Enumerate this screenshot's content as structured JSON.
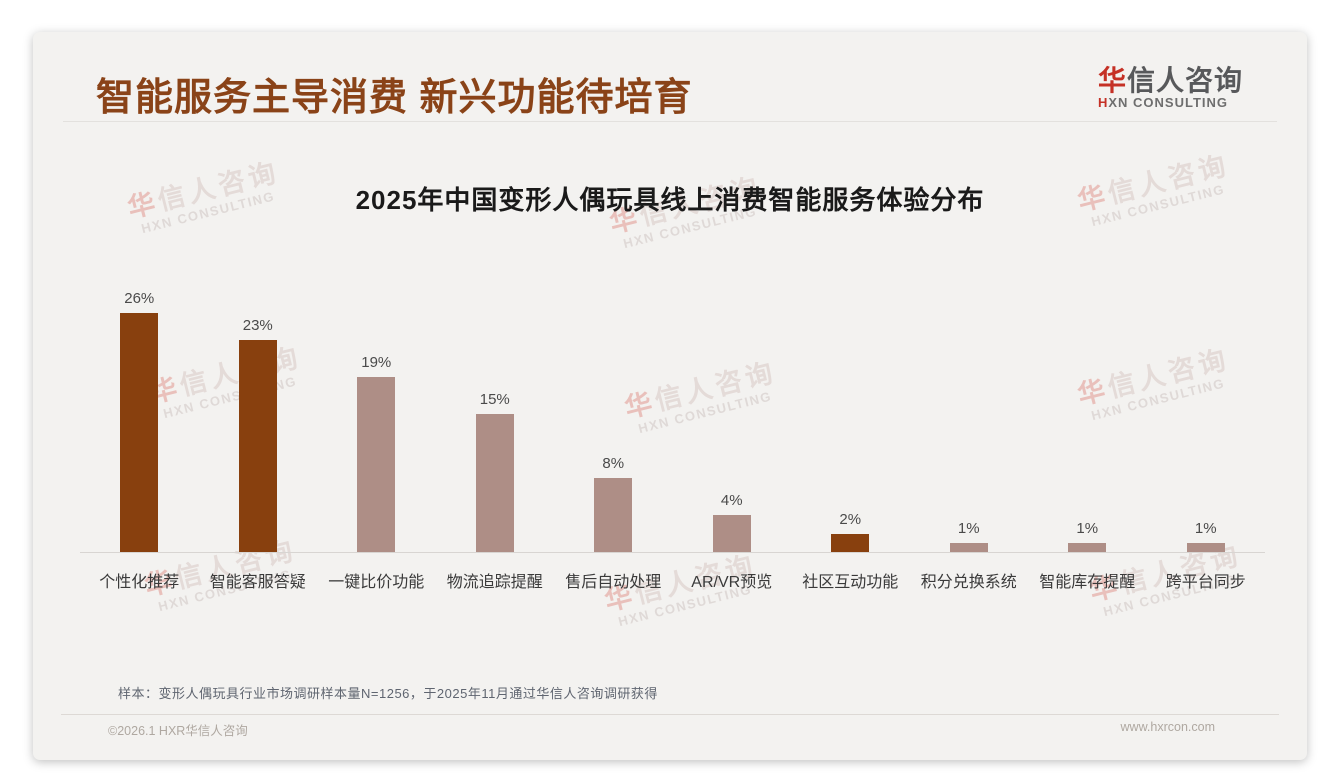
{
  "header": {
    "title": "智能服务主导消费 新兴功能待培育",
    "logo": {
      "cn_first": "华",
      "cn_rest": "信人咨询",
      "en_first": "H",
      "en_rest": "XN CONSULTING"
    }
  },
  "watermark": {
    "line1_first": "华",
    "line1_rest": "信人咨询",
    "line2": "HXN CONSULTING"
  },
  "chart_data": {
    "type": "bar",
    "title": "2025年中国变形人偶玩具线上消费智能服务体验分布",
    "categories": [
      "个性化推荐",
      "智能客服答疑",
      "一键比价功能",
      "物流追踪提醒",
      "售后自动处理",
      "AR/VR预览",
      "社区互动功能",
      "积分兑换系统",
      "智能库存提醒",
      "跨平台同步"
    ],
    "values": [
      26,
      23,
      19,
      15,
      8,
      4,
      2,
      1,
      1,
      1
    ],
    "value_labels": [
      "26%",
      "23%",
      "19%",
      "15%",
      "8%",
      "4%",
      "2%",
      "1%",
      "1%",
      "1%"
    ],
    "unit": "%",
    "highlight_indexes": [
      0,
      1,
      6
    ],
    "xlabel": "",
    "ylabel": "",
    "ylim": [
      0,
      28
    ],
    "grid": false,
    "legend": false
  },
  "colors": {
    "title_brown": "#8A4318",
    "logo_red": "#C53126",
    "bar_dark": "#88400E",
    "bar_light": "#AE8E86",
    "value_label": "#4A4A4A",
    "category_label": "#3A3A3A"
  },
  "footer": {
    "note": "样本：变形人偶玩具行业市场调研样本量N=1256，于2025年11月通过华信人咨询调研获得",
    "copyright": "©2026.1 HXR华信人咨询",
    "website": "www.hxrcon.com"
  }
}
